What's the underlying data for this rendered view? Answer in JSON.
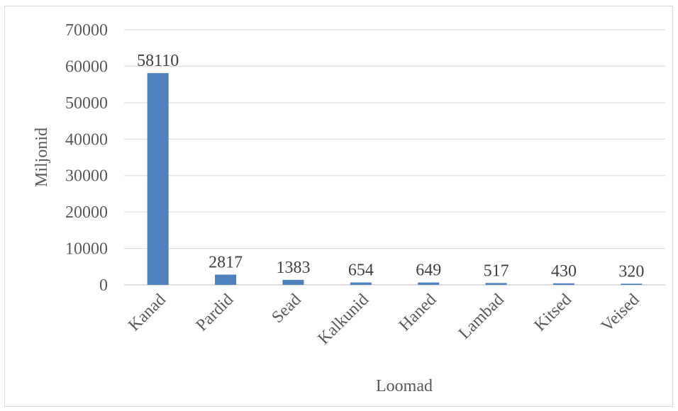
{
  "chart_data": {
    "type": "bar",
    "categories": [
      "Kanad",
      "Pardid",
      "Sead",
      "Kalkunid",
      "Haned",
      "Lambad",
      "Kitsed",
      "Veised"
    ],
    "values": [
      58110,
      2817,
      1383,
      654,
      649,
      517,
      430,
      320
    ],
    "xlabel": "Loomad",
    "ylabel": "Miljonid",
    "ylim": [
      0,
      70000
    ],
    "yticks": [
      0,
      10000,
      20000,
      30000,
      40000,
      50000,
      60000,
      70000
    ],
    "grid": true,
    "legend": "none",
    "colors": {
      "bar": "#4f81bd",
      "grid": "#d9d9d9",
      "text": "#595959"
    }
  }
}
